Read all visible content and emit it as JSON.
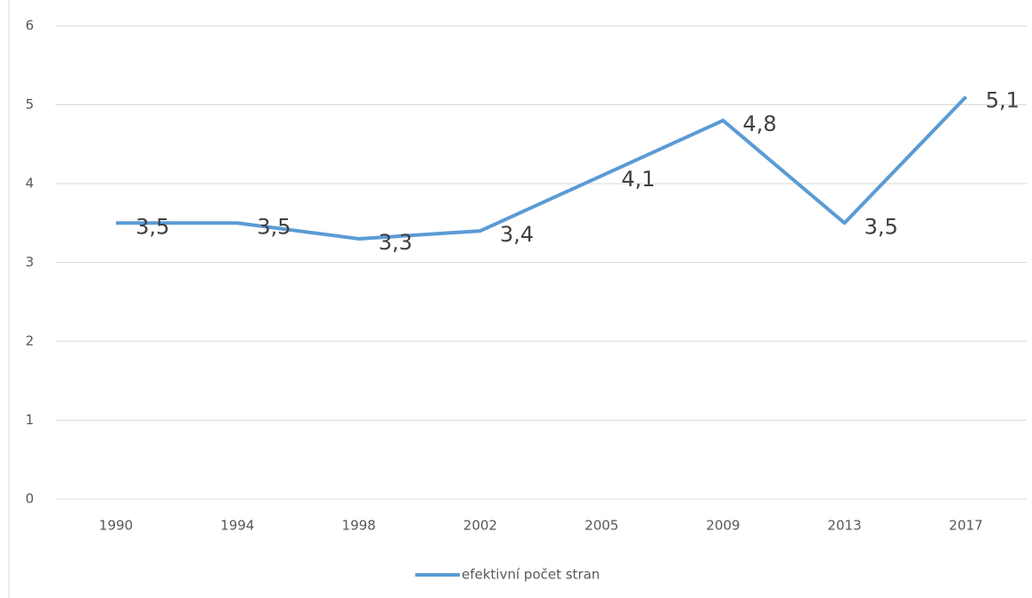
{
  "chart_data": {
    "type": "line",
    "categories": [
      "1990",
      "1994",
      "1998",
      "2002",
      "2005",
      "2009",
      "2013",
      "2017"
    ],
    "series": [
      {
        "name": "efektivní počet stran",
        "color": "#5b9bd5",
        "values": [
          3.5,
          3.5,
          3.3,
          3.4,
          4.1,
          4.8,
          3.5,
          5.1
        ],
        "value_labels": [
          "3,5",
          "3,5",
          "3,3",
          "3,4",
          "4,1",
          "4,8",
          "3,5",
          "5,1"
        ]
      }
    ],
    "ylim": [
      0,
      6
    ],
    "yticks": [
      0,
      1,
      2,
      3,
      4,
      5,
      6
    ],
    "grid": true,
    "legend": "bottom"
  }
}
